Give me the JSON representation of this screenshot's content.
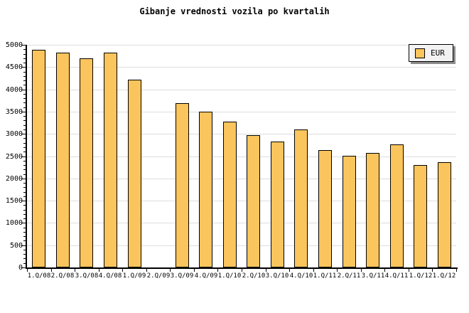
{
  "title": "Gibanje vrednosti vozila po kvartalih",
  "legend": {
    "label": "EUR"
  },
  "colors": {
    "background": "#FFFFFF",
    "text": "#000000",
    "axis": "#000000",
    "grid": "#DDDDDD",
    "bar_fill": "#FBC55E",
    "bar_border": "#000000",
    "legend_bg": "#F2F2F2",
    "legend_shadow": "#8C8C8C"
  },
  "chart_data": {
    "type": "bar",
    "title": "Gibanje vrednosti vozila po kvartalih",
    "categories": [
      "1.Q/08",
      "2.Q/08",
      "3.Q/08",
      "4.Q/08",
      "1.Q/09",
      "2.Q/09",
      "3.Q/09",
      "4.Q/09",
      "1.Q/10",
      "2.Q/10",
      "3.Q/10",
      "4.Q/10",
      "1.Q/11",
      "2.Q/11",
      "3.Q/11",
      "4.Q/11",
      "1.Q/12",
      "1.Q/12"
    ],
    "series": [
      {
        "name": "EUR",
        "values": [
          4890,
          4820,
          4690,
          4820,
          4220,
          null,
          3690,
          3500,
          3280,
          2970,
          2820,
          3100,
          2640,
          2500,
          2570,
          2760,
          2300,
          2360
        ]
      }
    ],
    "ylim": [
      0,
      5000
    ],
    "y_tick_interval_major": 500,
    "y_tick_interval_minor": 100,
    "y_tick_labels": [
      "0",
      "500",
      "1000",
      "1500",
      "2000",
      "2500",
      "3000",
      "3500",
      "4000",
      "4500",
      "5000"
    ],
    "grid": true,
    "legend_position": "top-right"
  }
}
